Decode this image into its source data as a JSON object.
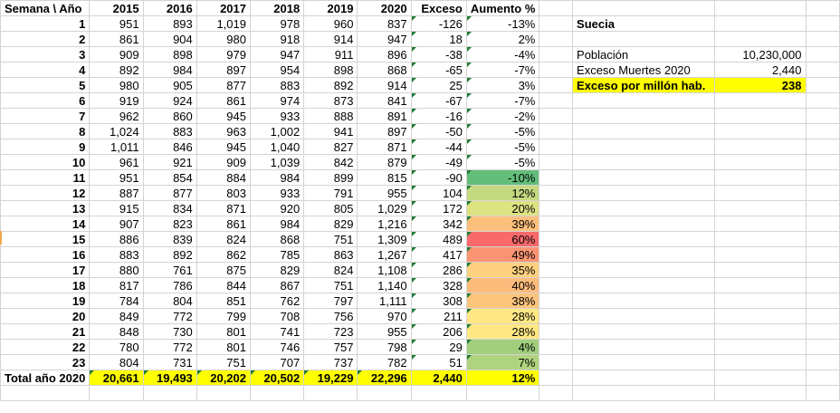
{
  "table": {
    "headers": [
      "Semana \\ Año",
      "2015",
      "2016",
      "2017",
      "2018",
      "2019",
      "2020",
      "Exceso",
      "Aumento %"
    ],
    "rows": [
      {
        "week": "1",
        "v": [
          "951",
          "893",
          "1,019",
          "978",
          "960",
          "837"
        ],
        "exceso": "-126",
        "aumento": "-13%",
        "color": ""
      },
      {
        "week": "2",
        "v": [
          "861",
          "904",
          "980",
          "918",
          "914",
          "947"
        ],
        "exceso": "18",
        "aumento": "2%",
        "color": ""
      },
      {
        "week": "3",
        "v": [
          "909",
          "898",
          "979",
          "947",
          "911",
          "896"
        ],
        "exceso": "-38",
        "aumento": "-4%",
        "color": ""
      },
      {
        "week": "4",
        "v": [
          "892",
          "984",
          "897",
          "954",
          "898",
          "868"
        ],
        "exceso": "-65",
        "aumento": "-7%",
        "color": ""
      },
      {
        "week": "5",
        "v": [
          "980",
          "905",
          "877",
          "883",
          "892",
          "914"
        ],
        "exceso": "25",
        "aumento": "3%",
        "color": ""
      },
      {
        "week": "6",
        "v": [
          "919",
          "924",
          "861",
          "974",
          "873",
          "841"
        ],
        "exceso": "-67",
        "aumento": "-7%",
        "color": ""
      },
      {
        "week": "7",
        "v": [
          "962",
          "860",
          "945",
          "933",
          "888",
          "891"
        ],
        "exceso": "-16",
        "aumento": "-2%",
        "color": ""
      },
      {
        "week": "8",
        "v": [
          "1,024",
          "883",
          "963",
          "1,002",
          "941",
          "897"
        ],
        "exceso": "-50",
        "aumento": "-5%",
        "color": ""
      },
      {
        "week": "9",
        "v": [
          "1,011",
          "846",
          "945",
          "1,040",
          "827",
          "871"
        ],
        "exceso": "-44",
        "aumento": "-5%",
        "color": ""
      },
      {
        "week": "10",
        "v": [
          "961",
          "921",
          "909",
          "1,039",
          "842",
          "879"
        ],
        "exceso": "-49",
        "aumento": "-5%",
        "color": ""
      },
      {
        "week": "11",
        "v": [
          "951",
          "854",
          "884",
          "984",
          "899",
          "815"
        ],
        "exceso": "-90",
        "aumento": "-10%",
        "color": "#63be7b"
      },
      {
        "week": "12",
        "v": [
          "887",
          "877",
          "803",
          "933",
          "791",
          "955"
        ],
        "exceso": "104",
        "aumento": "12%",
        "color": "#c4d980"
      },
      {
        "week": "13",
        "v": [
          "915",
          "834",
          "871",
          "920",
          "805",
          "1,029"
        ],
        "exceso": "172",
        "aumento": "20%",
        "color": "#dde283"
      },
      {
        "week": "14",
        "v": [
          "907",
          "823",
          "861",
          "984",
          "829",
          "1,216"
        ],
        "exceso": "342",
        "aumento": "39%",
        "color": "#fdc07c"
      },
      {
        "week": "15",
        "v": [
          "886",
          "839",
          "824",
          "868",
          "751",
          "1,309"
        ],
        "exceso": "489",
        "aumento": "60%",
        "color": "#f8696b"
      },
      {
        "week": "16",
        "v": [
          "883",
          "892",
          "862",
          "785",
          "863",
          "1,267"
        ],
        "exceso": "417",
        "aumento": "49%",
        "color": "#fb9473"
      },
      {
        "week": "17",
        "v": [
          "880",
          "761",
          "875",
          "829",
          "824",
          "1,108"
        ],
        "exceso": "286",
        "aumento": "35%",
        "color": "#fed07f"
      },
      {
        "week": "18",
        "v": [
          "817",
          "786",
          "844",
          "867",
          "751",
          "1,140"
        ],
        "exceso": "328",
        "aumento": "40%",
        "color": "#fdbc7b"
      },
      {
        "week": "19",
        "v": [
          "784",
          "804",
          "851",
          "762",
          "797",
          "1,111"
        ],
        "exceso": "308",
        "aumento": "38%",
        "color": "#fdc47d"
      },
      {
        "week": "20",
        "v": [
          "849",
          "772",
          "799",
          "708",
          "756",
          "970"
        ],
        "exceso": "211",
        "aumento": "28%",
        "color": "#ffe884"
      },
      {
        "week": "21",
        "v": [
          "848",
          "730",
          "801",
          "741",
          "723",
          "955"
        ],
        "exceso": "206",
        "aumento": "28%",
        "color": "#ffe884"
      },
      {
        "week": "22",
        "v": [
          "780",
          "772",
          "801",
          "746",
          "757",
          "798"
        ],
        "exceso": "29",
        "aumento": "4%",
        "color": "#a2cf7d"
      },
      {
        "week": "23",
        "v": [
          "804",
          "731",
          "751",
          "707",
          "737",
          "782"
        ],
        "exceso": "51",
        "aumento": "7%",
        "color": "#afd37f"
      }
    ],
    "total": {
      "label": "Total año 2020",
      "v": [
        "20,661",
        "19,493",
        "20,202",
        "20,502",
        "19,229",
        "22,296"
      ],
      "exceso": "2,440",
      "aumento": "12%"
    }
  },
  "side": {
    "country": "Suecia",
    "poblacion_label": "Población",
    "poblacion_value": "10,230,000",
    "exceso_label": "Exceso Muertes 2020",
    "exceso_value": "2,440",
    "permillon_label": "Exceso por millón hab.",
    "permillon_value": "238"
  },
  "colors": {
    "highlight": "#ffff00",
    "gridline": "#d4d4d4",
    "comment_marker": "#1e7b34"
  }
}
